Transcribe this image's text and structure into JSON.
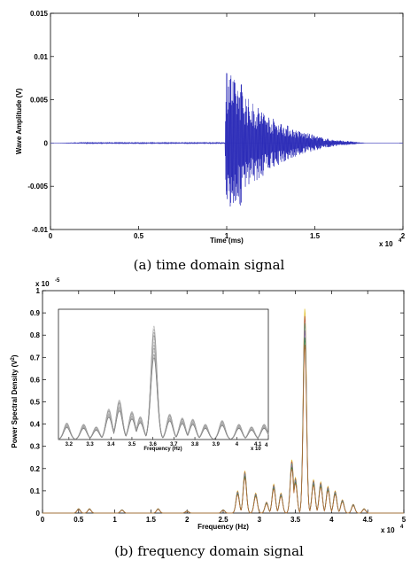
{
  "chart_data": [
    {
      "type": "line",
      "panel": "a",
      "caption": "(a)  time domain signal",
      "xlabel": "Time (ms)",
      "ylabel": "Wave Amplitude (V)",
      "x_multiplier": "x 10",
      "x_multiplier_exp": "4",
      "xlim": [
        0,
        20000
      ],
      "ylim": [
        -0.01,
        0.015
      ],
      "x_ticks": [
        0,
        0.5,
        1,
        1.5,
        2
      ],
      "x_tick_labels": [
        "0",
        "0.5",
        "1",
        "1.5",
        "2"
      ],
      "y_ticks": [
        -0.01,
        -0.005,
        0,
        0.005,
        0.01,
        0.015
      ],
      "y_tick_labels": [
        "-0.01",
        "-0.005",
        "0",
        "0.005",
        "0.01",
        "0.015"
      ],
      "grid": false,
      "line_color": "#2b2bb8",
      "series": [
        {
          "x": [
            0,
            2000,
            4000,
            6000,
            8000,
            9900,
            10000,
            10050,
            10150,
            10300,
            10500,
            10800,
            11000,
            11300,
            11600,
            12000,
            12500,
            13000,
            13500,
            14000,
            14500,
            15000,
            15500,
            16000,
            16500,
            17000,
            17500,
            18000,
            20000
          ],
          "y": [
            0,
            0.0001,
            -0.0001,
            0.0001,
            -0.0001,
            0.0001,
            0.0105,
            -0.0095,
            0.0095,
            -0.008,
            0.007,
            -0.0075,
            0.006,
            -0.005,
            0.0045,
            -0.004,
            0.003,
            -0.0025,
            0.002,
            -0.0015,
            0.0012,
            -0.0009,
            0.0006,
            -0.0004,
            0.0003,
            -0.0002,
            0.0001,
            0,
            0
          ]
        }
      ]
    },
    {
      "type": "line",
      "panel": "b",
      "caption": "(b)  frequency domain signal",
      "xlabel": "Frequency (Hz)",
      "ylabel": "Power Spectral Density (V",
      "ylabel_sup": "2",
      "ylabel_end": ")",
      "x_multiplier": "x 10",
      "x_multiplier_exp": "4",
      "y_multiplier": "x 10",
      "y_multiplier_exp": "-5",
      "xlim": [
        0,
        50000
      ],
      "ylim": [
        0,
        1
      ],
      "x_ticks": [
        0,
        0.5,
        1,
        1.5,
        2,
        2.5,
        3,
        3.5,
        4,
        4.5,
        5
      ],
      "x_tick_labels": [
        "0",
        "0.5",
        "1",
        "1.5",
        "2",
        "2.5",
        "3",
        "3.5",
        "4",
        "4.5",
        "5"
      ],
      "y_ticks": [
        0,
        0.1,
        0.2,
        0.3,
        0.4,
        0.5,
        0.6,
        0.7,
        0.8,
        0.9,
        1
      ],
      "y_tick_labels": [
        "0",
        "0.1",
        "0.2",
        "0.3",
        "0.4",
        "0.5",
        "0.6",
        "0.7",
        "0.8",
        "0.9",
        "1"
      ],
      "grid": false,
      "series_colors": [
        "#e0c02a",
        "#b05050",
        "#5a9a8a",
        "#8a6aa8",
        "#3a8a3a",
        "#c06a30"
      ],
      "peaks": [
        {
          "x": 5000,
          "y": 0.02
        },
        {
          "x": 6500,
          "y": 0.02
        },
        {
          "x": 11000,
          "y": 0.015
        },
        {
          "x": 16000,
          "y": 0.02
        },
        {
          "x": 20000,
          "y": 0.01
        },
        {
          "x": 25000,
          "y": 0.015
        },
        {
          "x": 27000,
          "y": 0.1
        },
        {
          "x": 28000,
          "y": 0.19
        },
        {
          "x": 29500,
          "y": 0.09
        },
        {
          "x": 31000,
          "y": 0.05
        },
        {
          "x": 32000,
          "y": 0.13
        },
        {
          "x": 33000,
          "y": 0.09
        },
        {
          "x": 34500,
          "y": 0.24
        },
        {
          "x": 35000,
          "y": 0.16
        },
        {
          "x": 36300,
          "y": 0.92
        },
        {
          "x": 37500,
          "y": 0.15
        },
        {
          "x": 38500,
          "y": 0.14
        },
        {
          "x": 39500,
          "y": 0.12
        },
        {
          "x": 40500,
          "y": 0.1
        },
        {
          "x": 41500,
          "y": 0.06
        },
        {
          "x": 43000,
          "y": 0.04
        },
        {
          "x": 44500,
          "y": 0.02
        }
      ],
      "inset": {
        "xlabel": "Frequency (Hz)",
        "x_multiplier": "x 10",
        "x_multiplier_exp": "4",
        "xlim": [
          31500,
          41500
        ],
        "x_ticks": [
          3.2,
          3.3,
          3.4,
          3.5,
          3.6,
          3.7,
          3.8,
          3.9,
          4,
          4.1
        ],
        "x_tick_labels": [
          "3.2",
          "3.3",
          "3.4",
          "3.5",
          "3.6",
          "3.7",
          "3.8",
          "3.9",
          "4",
          "4.1"
        ],
        "ylim": [
          0,
          1
        ],
        "peaks": [
          {
            "x": 31900,
            "y": 0.13
          },
          {
            "x": 32700,
            "y": 0.12
          },
          {
            "x": 33300,
            "y": 0.1
          },
          {
            "x": 33900,
            "y": 0.24
          },
          {
            "x": 34400,
            "y": 0.31
          },
          {
            "x": 35000,
            "y": 0.22
          },
          {
            "x": 35400,
            "y": 0.18
          },
          {
            "x": 36050,
            "y": 0.89
          },
          {
            "x": 36800,
            "y": 0.2
          },
          {
            "x": 37400,
            "y": 0.17
          },
          {
            "x": 37900,
            "y": 0.16
          },
          {
            "x": 38500,
            "y": 0.12
          },
          {
            "x": 39300,
            "y": 0.15
          },
          {
            "x": 40100,
            "y": 0.12
          },
          {
            "x": 40700,
            "y": 0.1
          },
          {
            "x": 41300,
            "y": 0.12
          }
        ]
      }
    }
  ]
}
